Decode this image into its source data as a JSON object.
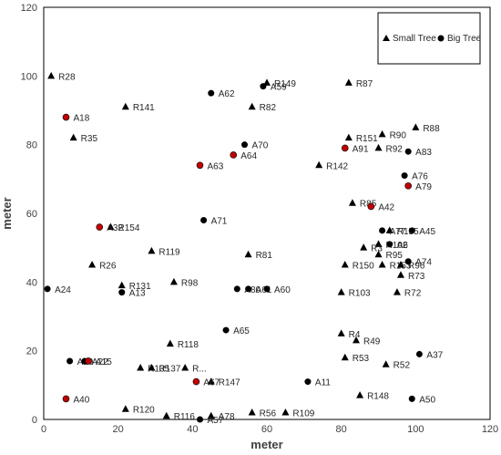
{
  "chart_data": {
    "type": "scatter",
    "xlabel": "meter",
    "ylabel": "meter",
    "xlim": [
      0,
      120
    ],
    "ylim": [
      0,
      120
    ],
    "xticks": [
      0,
      20,
      40,
      60,
      80,
      100,
      120
    ],
    "yticks": [
      0,
      20,
      40,
      60,
      80,
      100,
      120
    ],
    "grid": false,
    "legend_position": "top-right",
    "colors": {
      "small": "#000000",
      "big": "#000000",
      "highlight": "#c00000"
    },
    "series": [
      {
        "name": "Small Tree",
        "marker": "triangle",
        "points": [
          {
            "label": "R28",
            "x": 2,
            "y": 100
          },
          {
            "label": "R149",
            "x": 60,
            "y": 98
          },
          {
            "label": "R87",
            "x": 82,
            "y": 98
          },
          {
            "label": "R141",
            "x": 22,
            "y": 91
          },
          {
            "label": "R82",
            "x": 56,
            "y": 91
          },
          {
            "label": "R88",
            "x": 100,
            "y": 85
          },
          {
            "label": "R35",
            "x": 8,
            "y": 82
          },
          {
            "label": "R151",
            "x": 82,
            "y": 82
          },
          {
            "label": "R90",
            "x": 91,
            "y": 83
          },
          {
            "label": "R92",
            "x": 90,
            "y": 79
          },
          {
            "label": "R142",
            "x": 74,
            "y": 74
          },
          {
            "label": "R85",
            "x": 83,
            "y": 63
          },
          {
            "label": "R154",
            "x": 18,
            "y": 56
          },
          {
            "label": "R155",
            "x": 93,
            "y": 55
          },
          {
            "label": "R102",
            "x": 90,
            "y": 51
          },
          {
            "label": "R119",
            "x": 29,
            "y": 49
          },
          {
            "label": "R3",
            "x": 86,
            "y": 50
          },
          {
            "label": "R95",
            "x": 90,
            "y": 48
          },
          {
            "label": "R81",
            "x": 55,
            "y": 48
          },
          {
            "label": "R26",
            "x": 13,
            "y": 45
          },
          {
            "label": "R150",
            "x": 81,
            "y": 45
          },
          {
            "label": "R153",
            "x": 91,
            "y": 45
          },
          {
            "label": "R96",
            "x": 96,
            "y": 45
          },
          {
            "label": "R73",
            "x": 96,
            "y": 42
          },
          {
            "label": "R131",
            "x": 21,
            "y": 39
          },
          {
            "label": "R98",
            "x": 35,
            "y": 40
          },
          {
            "label": "R72",
            "x": 95,
            "y": 37
          },
          {
            "label": "R103",
            "x": 80,
            "y": 37
          },
          {
            "label": "R4",
            "x": 80,
            "y": 25
          },
          {
            "label": "R49",
            "x": 84,
            "y": 23
          },
          {
            "label": "R118",
            "x": 34,
            "y": 22
          },
          {
            "label": "R135",
            "x": 26,
            "y": 15
          },
          {
            "label": "R137",
            "x": 29,
            "y": 15
          },
          {
            "label": "R...",
            "x": 38,
            "y": 15
          },
          {
            "label": "R53",
            "x": 81,
            "y": 18
          },
          {
            "label": "R52",
            "x": 92,
            "y": 16
          },
          {
            "label": "R147",
            "x": 45,
            "y": 11
          },
          {
            "label": "R148",
            "x": 85,
            "y": 7
          },
          {
            "label": "R120",
            "x": 22,
            "y": 3
          },
          {
            "label": "R116",
            "x": 33,
            "y": 1
          },
          {
            "label": "A78",
            "x": 45,
            "y": 1
          },
          {
            "label": "R56",
            "x": 56,
            "y": 2
          },
          {
            "label": "R109",
            "x": 65,
            "y": 2
          }
        ]
      },
      {
        "name": "Big Tree",
        "marker": "circle",
        "points": [
          {
            "label": "A59",
            "x": 59,
            "y": 97,
            "red": false
          },
          {
            "label": "A62",
            "x": 45,
            "y": 95,
            "red": false
          },
          {
            "label": "A18",
            "x": 6,
            "y": 88,
            "red": true
          },
          {
            "label": "A70",
            "x": 54,
            "y": 80,
            "red": false
          },
          {
            "label": "A91",
            "x": 81,
            "y": 79,
            "red": true
          },
          {
            "label": "A83",
            "x": 98,
            "y": 78,
            "red": false
          },
          {
            "label": "A64",
            "x": 51,
            "y": 77,
            "red": true
          },
          {
            "label": "A63",
            "x": 42,
            "y": 74,
            "red": true
          },
          {
            "label": "A76",
            "x": 97,
            "y": 71,
            "red": false
          },
          {
            "label": "A79",
            "x": 98,
            "y": 68,
            "red": true
          },
          {
            "label": "A42",
            "x": 88,
            "y": 62,
            "red": true
          },
          {
            "label": "A71",
            "x": 43,
            "y": 58,
            "red": false
          },
          {
            "label": "A32",
            "x": 15,
            "y": 56,
            "red": true
          },
          {
            "label": "A77",
            "x": 91,
            "y": 55,
            "red": false
          },
          {
            "label": "A45",
            "x": 99,
            "y": 55,
            "red": false
          },
          {
            "label": "A6",
            "x": 93,
            "y": 51,
            "red": false
          },
          {
            "label": "A74",
            "x": 98,
            "y": 46,
            "red": false
          },
          {
            "label": "A24",
            "x": 1,
            "y": 38,
            "red": false
          },
          {
            "label": "A13",
            "x": 21,
            "y": 37,
            "red": false
          },
          {
            "label": "A80",
            "x": 52,
            "y": 38,
            "red": false
          },
          {
            "label": "A61",
            "x": 55,
            "y": 38,
            "red": false
          },
          {
            "label": "A60",
            "x": 60,
            "y": 38,
            "red": false
          },
          {
            "label": "A65",
            "x": 49,
            "y": 26,
            "red": false
          },
          {
            "label": "A37",
            "x": 101,
            "y": 19,
            "red": false
          },
          {
            "label": "A29",
            "x": 7,
            "y": 17,
            "red": false
          },
          {
            "label": "A22",
            "x": 11,
            "y": 17,
            "red": false
          },
          {
            "label": "A15",
            "x": 12,
            "y": 17,
            "red": true
          },
          {
            "label": "A67",
            "x": 41,
            "y": 11,
            "red": true
          },
          {
            "label": "A11",
            "x": 71,
            "y": 11,
            "red": false
          },
          {
            "label": "A40",
            "x": 6,
            "y": 6,
            "red": true
          },
          {
            "label": "A50",
            "x": 99,
            "y": 6,
            "red": false
          },
          {
            "label": "A57",
            "x": 42,
            "y": 0,
            "red": false
          }
        ]
      }
    ]
  }
}
